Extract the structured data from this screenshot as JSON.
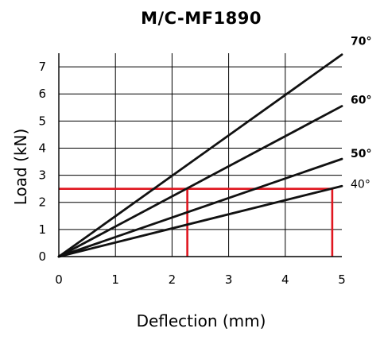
{
  "chart_data": {
    "type": "line",
    "title": "M/C-MF1890",
    "xlabel": "Deflection (mm)",
    "ylabel": "Load (kN)",
    "xlim": [
      0,
      5
    ],
    "ylim": [
      0,
      7.5
    ],
    "xticks": [
      0,
      1,
      2,
      3,
      4,
      5
    ],
    "xtick_labels": [
      "0",
      "1",
      "2",
      "3",
      "4",
      "5"
    ],
    "yticks": [
      0,
      1,
      2,
      3,
      4,
      5,
      6,
      7
    ],
    "ytick_labels": [
      "0",
      "1",
      "2",
      "3",
      "4",
      "5",
      "6",
      "7"
    ],
    "grid": true,
    "line_color": "#111111",
    "series": [
      {
        "name": "70°",
        "x": [
          0,
          5
        ],
        "y": [
          0,
          7.45
        ],
        "label_bold": true
      },
      {
        "name": "60°",
        "x": [
          0,
          5
        ],
        "y": [
          0,
          5.55
        ],
        "label_bold": true
      },
      {
        "name": "50°",
        "x": [
          0,
          5
        ],
        "y": [
          0,
          3.6
        ],
        "label_bold": true
      },
      {
        "name": "40°",
        "x": [
          0,
          5
        ],
        "y": [
          0,
          2.6
        ],
        "label_bold": false
      }
    ],
    "reference_lines": {
      "color": "#e0161f",
      "load": 2.5,
      "deflections": [
        2.27,
        4.83
      ]
    }
  }
}
